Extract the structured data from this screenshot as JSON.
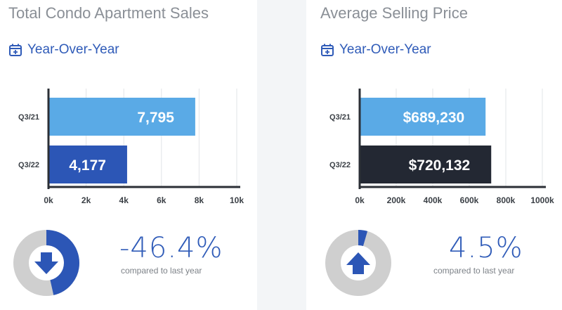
{
  "panels": [
    {
      "title": "Total Condo Apartment Sales",
      "subtitle": "Year-Over-Year",
      "change": "-46.4%",
      "compare_text": "compared to last year",
      "direction": "down",
      "donut_fraction": 0.464
    },
    {
      "title": "Average Selling Price",
      "subtitle": "Year-Over-Year",
      "change": "4.5%",
      "compare_text": "compared to last year",
      "direction": "up",
      "donut_fraction": 0.045
    }
  ],
  "icons": {
    "subtitle_icon": "calendar-plus-icon",
    "down_icon": "arrow-down-icon",
    "up_icon": "arrow-up-icon"
  },
  "colors": {
    "accent": "#2f5bb8",
    "bar_light": "#5aaae6",
    "bar_dark_blue": "#2c56b6",
    "bar_black": "#232833",
    "donut_track": "#cfcfcf",
    "axis": "#2b2f36"
  },
  "chart_data": [
    {
      "type": "bar",
      "orientation": "horizontal",
      "title": "Total Condo Apartment Sales",
      "categories": [
        "Q3/21",
        "Q3/22"
      ],
      "values": [
        7795,
        4177
      ],
      "value_labels": [
        "7,795",
        "4,177"
      ],
      "xlim": [
        0,
        10000
      ],
      "xticks": [
        0,
        2000,
        4000,
        6000,
        8000,
        10000
      ],
      "xtick_labels": [
        "0k",
        "2k",
        "4k",
        "6k",
        "8k",
        "10k"
      ],
      "bar_colors": [
        "#5aaae6",
        "#2c56b6"
      ],
      "grid": true
    },
    {
      "type": "bar",
      "orientation": "horizontal",
      "title": "Average Selling Price",
      "categories": [
        "Q3/21",
        "Q3/22"
      ],
      "values": [
        689230,
        720132
      ],
      "value_labels": [
        "$689,230",
        "$720,132"
      ],
      "xlim": [
        0,
        1000000
      ],
      "xticks": [
        0,
        200000,
        400000,
        600000,
        800000,
        1000000
      ],
      "xtick_labels": [
        "0k",
        "200k",
        "400k",
        "600k",
        "800k",
        "1000k"
      ],
      "bar_colors": [
        "#5aaae6",
        "#232833"
      ],
      "grid": true
    }
  ]
}
